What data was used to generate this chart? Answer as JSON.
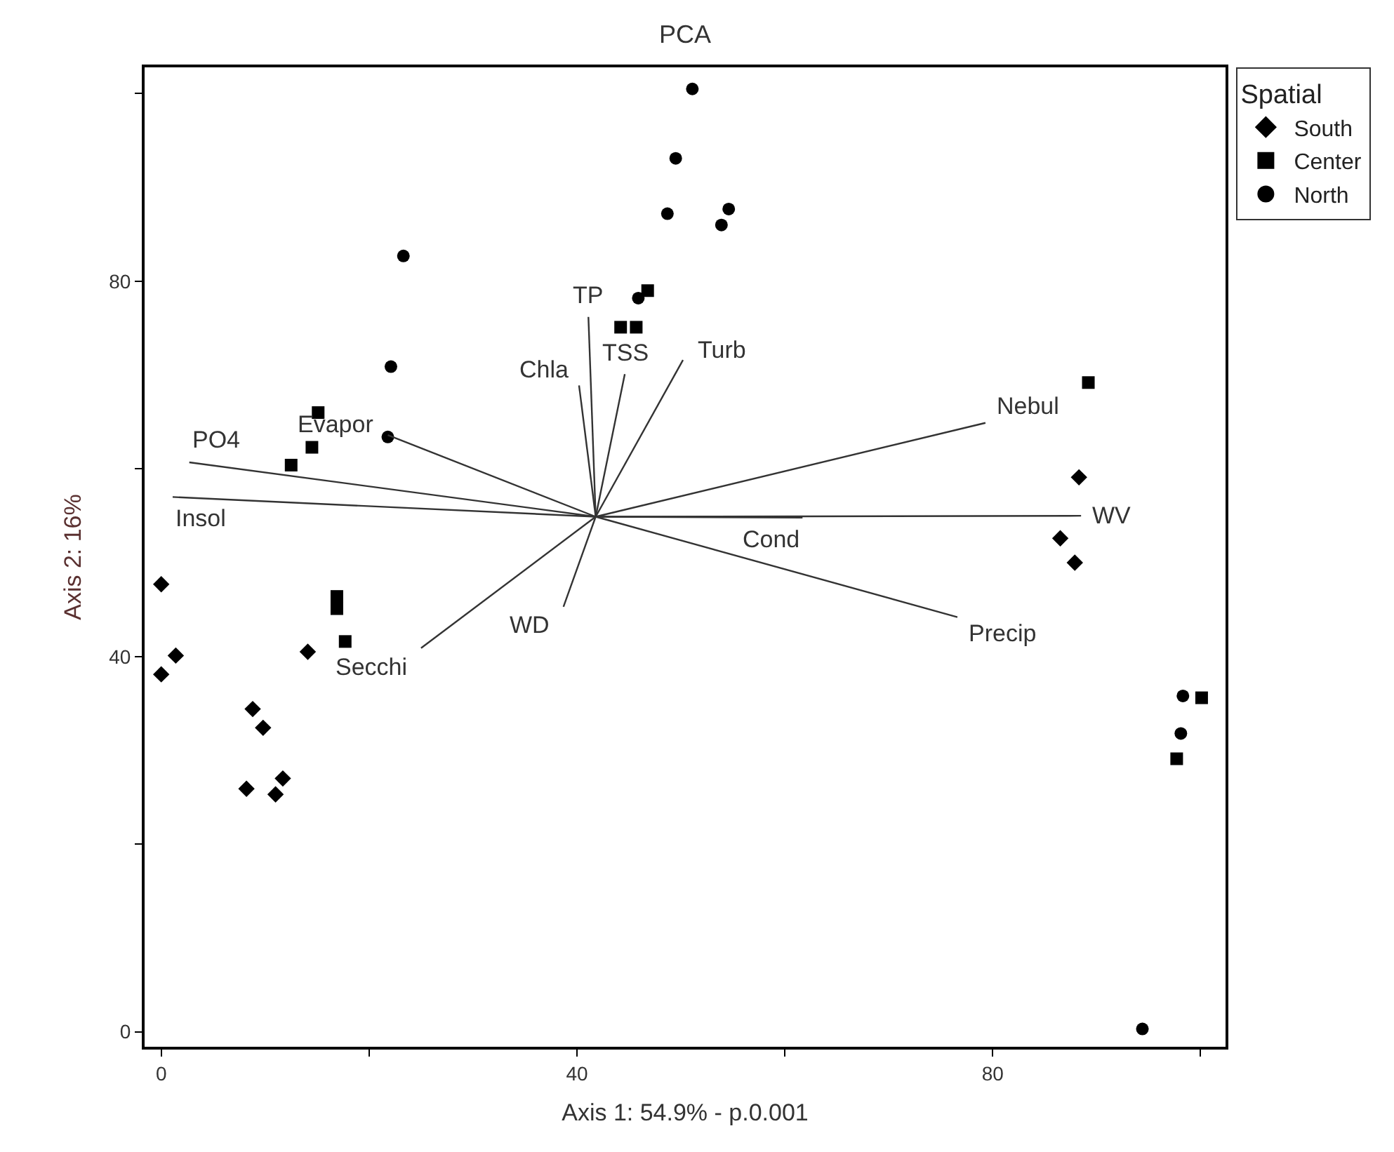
{
  "chart_data": {
    "type": "scatter",
    "title": "PCA",
    "xlabel": "Axis 1: 54.9% - p.0.001",
    "ylabel": "Axis 2: 16%",
    "legend_title": "Spatial",
    "legend": "top right",
    "xlim": [
      -1.6,
      102.4
    ],
    "ylim": [
      -1.6,
      102.8
    ],
    "xticks": [
      0,
      {
        "value": 20,
        "label": null
      },
      40,
      {
        "value": 60,
        "label": null
      },
      80,
      {
        "value": 100,
        "label": null
      }
    ],
    "yticks": [
      0,
      {
        "value": 20,
        "label": null
      },
      40,
      {
        "value": 60,
        "label": null
      },
      80,
      {
        "value": 100,
        "label": null
      }
    ],
    "series": [
      {
        "name": "South",
        "color": "#000000",
        "marker": "diamond",
        "x": [
          0,
          1.4,
          0,
          14.1,
          8.8,
          9.8,
          8.2,
          11.7,
          11.0,
          88.3,
          86.5,
          87.9
        ],
        "values": [
          47.7,
          40.1,
          38.1,
          40.5,
          34.4,
          32.4,
          25.9,
          27.0,
          25.3,
          59.1,
          52.6,
          50.0
        ]
      },
      {
        "name": "Center",
        "color": "#000000",
        "marker": "square",
        "x": [
          46.8,
          44.2,
          45.7,
          15.1,
          14.5,
          12.5,
          89.2,
          16.9,
          16.9,
          17.7,
          100.1,
          97.7
        ],
        "values": [
          79.0,
          75.1,
          75.1,
          66.0,
          62.3,
          60.4,
          69.2,
          46.4,
          45.1,
          41.6,
          35.6,
          29.1
        ]
      },
      {
        "name": "North",
        "color": "#000000",
        "marker": "circle",
        "x": [
          51.1,
          49.5,
          48.7,
          54.6,
          53.9,
          23.3,
          22.1,
          21.8,
          45.9,
          98.3,
          98.1,
          94.4
        ],
        "values": [
          100.5,
          93.1,
          87.2,
          87.7,
          86.0,
          82.7,
          70.9,
          63.4,
          78.2,
          35.8,
          31.8,
          0.3
        ]
      },
      {
        "type": "line",
        "color": "#333333",
        "marker": "none",
        "x": [
          41.8,
          41.1,
          null,
          41.8,
          40.2,
          null,
          41.8,
          44.6,
          null,
          41.8,
          50.2,
          null,
          41.8,
          21.8,
          null,
          41.8,
          2.7,
          null,
          41.8,
          1.1,
          null,
          41.8,
          79.3,
          null,
          41.8,
          88.5,
          null,
          41.8,
          61.7,
          null,
          41.8,
          76.6,
          null,
          41.8,
          38.7,
          null,
          41.8,
          25.0
        ],
        "values": [
          54.9,
          76.2,
          null,
          54.9,
          68.9,
          null,
          54.9,
          70.1,
          null,
          54.9,
          71.6,
          null,
          54.9,
          63.6,
          null,
          54.9,
          60.7,
          null,
          54.9,
          57.0,
          null,
          54.9,
          64.9,
          null,
          54.9,
          55.0,
          null,
          54.9,
          54.8,
          null,
          54.9,
          44.2,
          null,
          54.9,
          45.3,
          null,
          54.9,
          40.9
        ]
      }
    ],
    "annotations": [
      {
        "text": "TP",
        "x": 41.1,
        "y": 76.2
      },
      {
        "text": "Chla",
        "x": 40.2,
        "y": 68.9
      },
      {
        "text": "TSS",
        "x": 44.6,
        "y": 70.1
      },
      {
        "text": "Turb",
        "x": 50.2,
        "y": 71.6
      },
      {
        "text": "Evapor",
        "x": 21.8,
        "y": 63.6
      },
      {
        "text": "PO4",
        "x": 2.7,
        "y": 60.7
      },
      {
        "text": "Insol",
        "x": 1.1,
        "y": 57.0
      },
      {
        "text": "Nebul",
        "x": 79.3,
        "y": 64.9
      },
      {
        "text": "WV",
        "x": 88.5,
        "y": 55.0
      },
      {
        "text": "Cond",
        "x": 61.7,
        "y": 54.8
      },
      {
        "text": "Precip",
        "x": 76.6,
        "y": 44.2
      },
      {
        "text": "WD",
        "x": 38.7,
        "y": 45.3
      },
      {
        "text": "Secchi",
        "x": 25.0,
        "y": 40.9
      }
    ]
  }
}
